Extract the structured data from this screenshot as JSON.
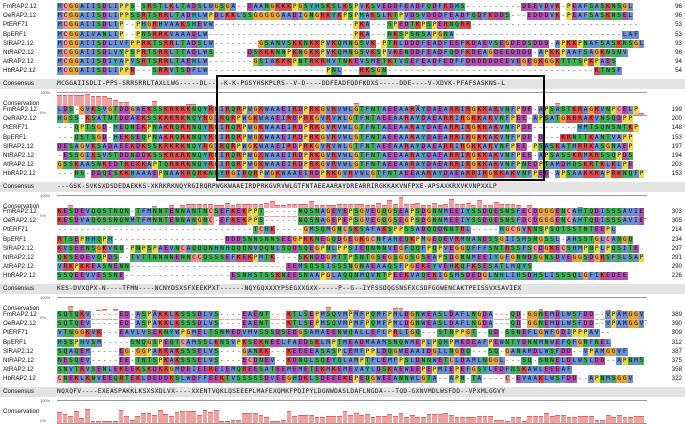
{
  "palette": {
    "A": "#6b8fd4",
    "I": "#6b8fd4",
    "L": "#6b8fd4",
    "M": "#6b8fd4",
    "F": "#6b8fd4",
    "W": "#6b8fd4",
    "V": "#6b8fd4",
    "C": "#f08f8f",
    "K": "#d94b4b",
    "R": "#d94b4b",
    "E": "#b14fb1",
    "D": "#b14fb1",
    "N": "#3fae55",
    "Q": "#3fae55",
    "S": "#3fae55",
    "T": "#3fae55",
    "G": "#e5a43b",
    "P": "#e8d84a",
    "H": "#3aa6a6",
    "Y": "#3aa6a6",
    "X": "#ffffff",
    "-": "#ffffff"
  },
  "labels": {
    "consensus": "Consensus",
    "conservation": "Conservation",
    "pct_top": "100%",
    "pct_bottom": "0%"
  },
  "blocks": [
    {
      "rows": [
        {
          "name": "FmRAP2.12",
          "seq": "MCGGAIISDLIPPS-SRSTLKLTADSLWGSGA--DAANGKKKPGSYHSKSLKSPVKSVEDDFEADFQDFKDHS----------DEEVDVK-PEAFSASKNSGL",
          "end": "96"
        },
        {
          "name": "OeRAP2.12",
          "seq": "MCGGAIISDLIPPSSRTSRRLTADHLWPDLKKLSSGGGGGAADIGNGKKYKPSPHAKSLKTPVDSVDDDFEADFQDFKDDS---EDDDVK-PEAFSASKNSEL",
          "end": "96"
        },
        {
          "name": "PtERF71",
          "seq": "MCGGAIISDLIP--PHGRHVAAKSHEVW-------------------------PKA---SPEDTKPSPERNQRR------------------------------",
          "end": "53"
        },
        {
          "name": "BpERF1",
          "seq": "MCGGAIVANLIP--PNSRRKVAAADLW--------------------------PKA---NKSPSNSAPGNA------------------------------LAF",
          "end": "53"
        },
        {
          "name": "SlRAP2.12",
          "seq": "MCGGAIISDLIVFPPRKTSRRLTADSLW--------GSANVSKKNKKPVKQMNGSVK-PTRLDDDFEADFEEFKDAEVSEGDEDSDDD-APKKPNAFSASKNSGL",
          "end": "93"
        },
        {
          "name": "NtRAP2.12",
          "seq": "MCGGAIISDLVYPSPRTSRRLTTADLWS------DSKKKNNPKNGKKPVKQMNGSVKSPVKENDDFEADFQDFKDEAGDEEDDDD-APKKPAAFSAGKNSNV",
          "end": "96"
        },
        {
          "name": "AtRAP2.12",
          "seq": "MCGGAIISDIYAPVSRTSRRLTAEHLW--------GSIAKKKPNTRKRHVTNKEVSMETKTVSEFEADFEDFFDDDDDDEEVEGEGKGGKTTTSPKPAES",
          "end": "94"
        },
        {
          "name": "HbRAP2.12",
          "seq": "MCGGAIISDLIPPR---SRRVTSDFLW---------------------PNL---KKSGN-------------------------------------KTNSF",
          "end": "54"
        }
      ],
      "consensus": "MCGGAIISDLI-PPS-SRRSRRLTAXLLWG-----DL----K-K-PGSYHSKPLRS--V-D----DDFEADFQDFKDXS-----DDE----V-XDVK-PFAFSASKNS-L"
    },
    {
      "rows": [
        {
          "name": "FmRAP2.12",
          "seq": "LDS-GVKSVGTDDGAEKSSKRKRKNQYRGIRQRPWGKWAAEIRDPRKGVRVWLGTFNTAEEAARAYDAEARRIRGKKAKVNFPDE-APSASTKRAGKVNPCELP",
          "end": "199"
        },
        {
          "name": "OeRAP2.12",
          "seq": "HGSS-KSATNTDDAEKSSKRKRKNQYRGIRQRPWGKWAAEIRDPRKGVRVWLGTFNTAEEAARAYDAEARRIRGKKAKVNFPEE-APSATGKRRAKVNSQDPP",
          "end": "200"
        },
        {
          "name": "PtERF71",
          "seq": "---QPTSGD-HEQNEKPNAKRQRKNQYRGIRQRPWGKWAAEIRDPRKGVRVWLGTFNTAEEAARAYDAEARRIRGKKAKVNFPDE--------HMTSQNSNTKP",
          "end": "148"
        },
        {
          "name": "BpERF1",
          "seq": "---QSTSGD-HEKSEQPNAKRQRKNQYRGIRQRPWGKWAAEIRDPRKGVRVWLGTFNTAEEAARAYDAEARRIRGKKAKVNFPDE-D---KRNTTKANTVAPP",
          "end": "153"
        },
        {
          "name": "SlRAP2.12",
          "seq": "DESAGVKSADAEEKDKSSKRKRKNQYRGIRQRPWGKWAAEIRDPRKGVRVWLGTFNTAEEAARAYDAEARRIRGKKAKVNFPEE-PSASKATMRRKASGNAEP",
          "end": "197"
        },
        {
          "name": "NtRAP2.12",
          "seq": "-ESSGIKSVSTDDNDDKSSKRKRKNQYRGIRQRPWGKWAAEIRDPRKGVRVWLGTFNTAEEAARAYDAEARRIRGKKAKVNFPEE-APSASSKRMKRSSQPDS",
          "end": "194"
        },
        {
          "name": "AtRAP2.12",
          "seq": "GSSKAASNKEDTKEKKAPTQRKRKNQYRGIRQRPWGKWAAEIRDPRKGVRVWLGTFNTAEEAARAYDAEARRIRGKKAKVNFPNEDPTAMDHQSKRTKLKLPE",
          "end": "203"
        },
        {
          "name": "HbRAP2.12",
          "seq": "---NS-DDQESKKHAAAEPNAAKRQRKNQYRGIRQRPWGKWAAEIRDPRKGVRVWLGTFNTAEEAARAYDAEARRIRGKKAKVNFPEE-APSAAKKRAPRKNQFP",
          "end": "153"
        }
      ],
      "consensus": "---GSK-SVKSXDSDEDAEKKS-XKRKRKNQYRGIRQRPWGKWAAEIRDPRKGVRVWLGTFNTAEEAARAYDREARRIRGKKAKVNFPXE-APSAXKRXVKVNPXXLP"
    },
    {
      "rows": [
        {
          "name": "FmRAP2.12",
          "seq": "KESDEVQQSTNQN-TFMNNTENNANTNCSEFKEKPPT------NQSNAGEYEPSGVEGQGSEAPSDGNNMEEIYSSDQESNSFECDGGGENCAHTQDISSSAVIED",
          "end": "303"
        },
        {
          "name": "OeRAP2.12",
          "seq": "KESDVAQQSSNQNMTFMNNTENNANGNC-EFKEKPPS------NQSNAGEPEPSGVEGQGSEGPSDGNNMEEIYSSDQESNSFDCDGGGENCAHTQDISSSAVIED",
          "end": "305"
        },
        {
          "name": "PtERF71",
          "seq": "-----------------------------------TCHK-----GMSQMGNCSKSAFAKSPPSSADQQDNNTRL-----HGCGVKNSPSQTSSTNTEEPL",
          "end": "214"
        },
        {
          "name": "BpERF1",
          "seq": "RTSEPHHQPH--------------------DDDSNNSNNSEEGPKKNEGQDGEGKGCNFAHEQKPMGEQEVRMNANDSSGIISMSNGSSL-AHSSTGLCANGQ",
          "end": "234"
        },
        {
          "name": "SlRAP2.12",
          "seq": "KVSEENSGKVNQ-PNPSPAEVNCAQQQNHNHQQQNVQQNLSQDSQEGPNLPPSIEQNNNVEGFQQFPQPVEGGQFFFSNTRSSFSCDGKECSHMPNPLPQSITE",
          "end": "297"
        },
        {
          "name": "NtRAP2.12",
          "seq": "QKSEDEVQPDS--TVTTNNNNENNCCQSSSEFKEKPMTK----SKNDDGMTTPSNTGSEGSGGSGSEAPSDGNNMEEIYGFGNNDSGNSDVEGGSDGRSFSLSAPE",
          "end": "291"
        },
        {
          "name": "AtRAP2.12",
          "seq": "VRKPKKEASNENN----------------------------EEMSQSSISSSNGNAEAAQSFPGEKEYVEHKQFKSESATLMQYS",
          "end": "290"
        },
        {
          "name": "HbRAP2.12",
          "seq": "SSQEEVVESSNE-------------------ESNHSTSSKNEESNAAPGLAQQNMQVNTPEEKVAQEKIGSMSDEDGLNHLIHSDHSLISSSQLGFIKEDEE",
          "end": "226"
        }
      ],
      "consensus": "KES-DVXQPX-N----TFMN----NCNYDSXSFXEEKPXT------NQYGQXXXYPSEGXXGXX-----P--G--IYFSSDQGSNSFXCSDFGGWENCAKTPEISSVXSAVIEX"
    },
    {
      "rows": [
        {
          "name": "FmRAP2.12",
          "seq": "SQTQKV-----ED-ASPAKKLKSSSDLVS----EAENT---KTLSEPMSQVMPMFPQMFPMLDGNWEASLDAFLNGDA---QD-GGNEMDLWSFDD--VPAMGGVY",
          "end": "389"
        },
        {
          "name": "OeRAP2.12",
          "seq": "SQTQEV-----ED-ASPAKKLKSSSDLVS----EAENT---KTLSEPMSQVMPMFPQMFPMLDGNWEASLDAFLNGDA---QD-GGNEMDLWSFDD--VPAMGGVY",
          "end": "390"
        },
        {
          "name": "PtERF71",
          "seq": "VTNGGKVK---EAVLVSEKNYWPGMELTSNMEDVMVSSSDSEDGSAMAEENWQALLEFLPRLIGQ---STNPPGT--QD-SSNEFLGWFGDIPPPAV--",
          "end": "309"
        },
        {
          "name": "BpERF1",
          "seq": "HSSPHVSM-----SNQGSPEQTCAMSSLKNSVPKSEKNEELFAEDSKLMPTMEADMAAMSNQWMEPLPQHPMEDEAFPEWNTYDNNMNWEFQFGNFNEL",
          "end": "312"
        },
        {
          "name": "SlRAP2.12",
          "seq": "SQAQEM-----EG-GGPAKRAKSSSELVS----GANKK---KEEEEASASPLEMFPPLDQGWEAAIDGLLNGDQ---SQ-GANAMDLWSFDD--VPAMGGVF",
          "end": "387"
        },
        {
          "name": "NtRAP2.12",
          "seq": "NESQEV-----EE-TNTSPKAKSSSELVS----ECDNEV--KDNQLSQEYQLAMPTFLEMFPSLDNNWETCLDAMLNGGL---SQ-SNNELDLWSLDD--APNMSGGF",
          "end": "375"
        },
        {
          "name": "AtRAP2.12",
          "seq": "SNVTRVSENLEKEEKSKDKRGMDEIEEREIEMQREESATEEMEMETEKMKEMEVAYLDSKAEWEEPEPMIEPEFGSYLEDFNSKAWLEEEAF",
          "end": "358"
        },
        {
          "name": "HbRAP2.12",
          "seq": "CNEKLKNVEEQRTEKLDEDDKSLWDFFEEKTVSSSSSDVEEGHDKLSDEEEKEPEQGWEEANNWLGTA--APN-TA----C-EVAAKLWSFDD--APNMSGGV",
          "end": "322"
        }
      ],
      "consensus": "NQXQFV----EXEASPAKKLKSXSXDLVX----XXENTVQKLQSEEEPLMAFEXQMKFPQIPYLDGNWDASLDAFLNGDA---TQD-GXNVMDLWSFDD--VPXMLGGVY"
    }
  ]
}
